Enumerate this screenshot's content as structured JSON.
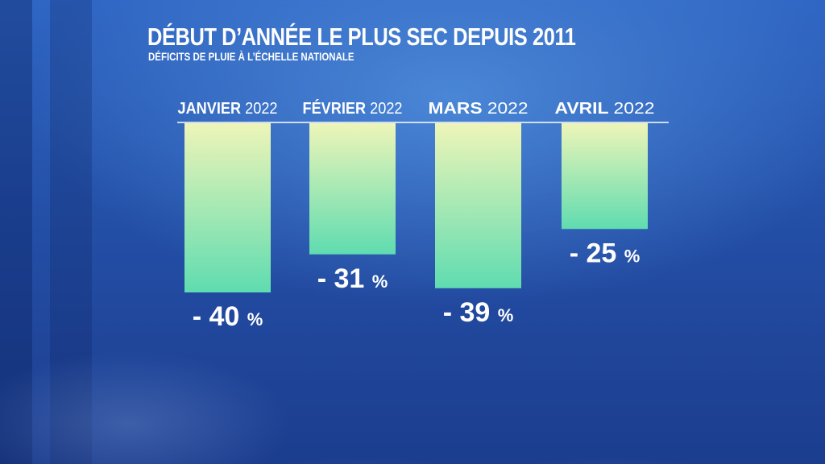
{
  "chart_data": {
    "type": "bar",
    "title": "DÉBUT D’ANNÉE LE PLUS SEC DEPUIS 2011",
    "subtitle": "DÉFICITS DE PLUIE À L’ÉCHELLE NATIONALE",
    "categories": [
      {
        "month": "JANVIER",
        "year": "2022"
      },
      {
        "month": "FÉVRIER",
        "year": "2022"
      },
      {
        "month": "MARS",
        "year": "2022"
      },
      {
        "month": "AVRIL",
        "year": "2022"
      }
    ],
    "values": [
      -40,
      -31,
      -39,
      -25
    ],
    "value_labels": [
      "- 40",
      "- 31",
      "- 39",
      "- 25"
    ],
    "unit": "%",
    "xlabel": "",
    "ylabel": "",
    "ylim": [
      -40,
      0
    ],
    "colors": {
      "bar_top": "#eef5b8",
      "bar_bottom": "#5fdcb0"
    }
  }
}
